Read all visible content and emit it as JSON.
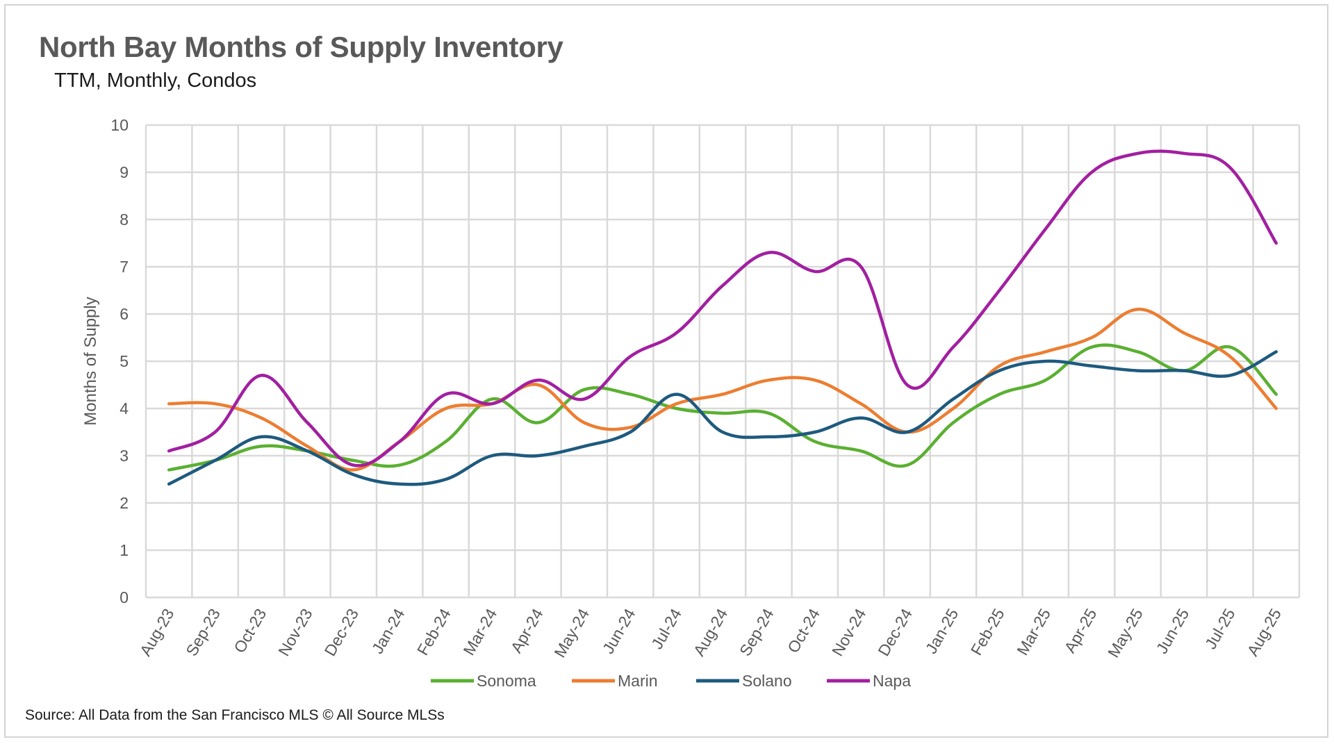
{
  "header": {
    "title": "North Bay Months of Supply Inventory",
    "subtitle": "TTM, Monthly, Condos"
  },
  "footer": {
    "source": "Source: All Data from the San Francisco MLS © All Source MLSs"
  },
  "chart_data": {
    "type": "line",
    "title": "North Bay Months of Supply Inventory",
    "subtitle": "TTM, Monthly, Condos",
    "xlabel": "",
    "ylabel": "Months of Supply",
    "ylim": [
      0,
      10
    ],
    "yticks": [
      0,
      1,
      2,
      3,
      4,
      5,
      6,
      7,
      8,
      9,
      10
    ],
    "grid": true,
    "smoothed": true,
    "legend_position": "bottom",
    "categories": [
      "Aug-23",
      "Sep-23",
      "Oct-23",
      "Nov-23",
      "Dec-23",
      "Jan-24",
      "Feb-24",
      "Mar-24",
      "Apr-24",
      "May-24",
      "Jun-24",
      "Jul-24",
      "Aug-24",
      "Sep-24",
      "Oct-24",
      "Nov-24",
      "Dec-24",
      "Jan-25",
      "Feb-25",
      "Mar-25",
      "Apr-25",
      "May-25",
      "Jun-25",
      "Jul-25",
      "Aug-25"
    ],
    "series": [
      {
        "name": "Sonoma",
        "color": "#5ab031",
        "values": [
          2.7,
          2.9,
          3.2,
          3.1,
          2.9,
          2.8,
          3.3,
          4.2,
          3.7,
          4.4,
          4.3,
          4.0,
          3.9,
          3.9,
          3.3,
          3.1,
          2.8,
          3.7,
          4.3,
          4.6,
          5.3,
          5.2,
          4.8,
          5.3,
          4.3
        ]
      },
      {
        "name": "Marin",
        "color": "#ed7d31",
        "values": [
          4.1,
          4.1,
          3.8,
          3.2,
          2.7,
          3.3,
          4.0,
          4.1,
          4.5,
          3.7,
          3.6,
          4.1,
          4.3,
          4.6,
          4.6,
          4.1,
          3.5,
          4.0,
          4.9,
          5.2,
          5.5,
          6.1,
          5.6,
          5.1,
          4.0
        ]
      },
      {
        "name": "Solano",
        "color": "#1e5a7e",
        "values": [
          2.4,
          2.9,
          3.4,
          3.1,
          2.6,
          2.4,
          2.5,
          3.0,
          3.0,
          3.2,
          3.5,
          4.3,
          3.5,
          3.4,
          3.5,
          3.8,
          3.5,
          4.2,
          4.8,
          5.0,
          4.9,
          4.8,
          4.8,
          4.7,
          5.2
        ]
      },
      {
        "name": "Napa",
        "color": "#a21fa1",
        "values": [
          3.1,
          3.5,
          4.7,
          3.7,
          2.8,
          3.3,
          4.3,
          4.1,
          4.6,
          4.2,
          5.1,
          5.6,
          6.6,
          7.3,
          6.9,
          7.0,
          4.5,
          5.3,
          6.5,
          7.8,
          9.0,
          9.4,
          9.4,
          9.1,
          7.5
        ]
      }
    ]
  }
}
